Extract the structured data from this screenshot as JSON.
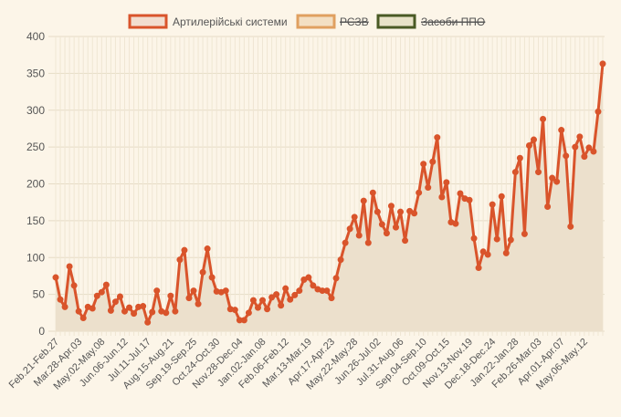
{
  "chart_data": {
    "type": "line",
    "legend": [
      {
        "name": "Артилерійські системи",
        "visible": true,
        "stroke": "#d9542b",
        "fill": "#f2ddcf"
      },
      {
        "name": "РСЗВ",
        "visible": false,
        "stroke": "#e0a060",
        "fill": "#f3dfc3"
      },
      {
        "name": "Засоби ППО",
        "visible": false,
        "stroke": "#4a5a25",
        "fill": "#e8e2c8"
      }
    ],
    "legend_position": "top-center",
    "y_ticks": [
      0,
      50,
      100,
      150,
      200,
      250,
      300,
      350,
      400
    ],
    "ylim": [
      0,
      400
    ],
    "grid": true,
    "x_tick_labels": [
      "Feb.21-Feb.27",
      "Mar.28-Apr.03",
      "May.02-May.08",
      "Jun.06-Jun.12",
      "Jul.11-Jul.17",
      "Aug.15-Aug.21",
      "Sep.19-Sep.25",
      "Oct.24-Oct.30",
      "Nov.28-Dec.04",
      "Jan.02-Jan.08",
      "Feb.06-Feb.12",
      "Mar.13-Mar.19",
      "Apr.17-Apr.23",
      "May.22-May.28",
      "Jun.26-Jul.02",
      "Jul.31-Aug.06",
      "Sep.04-Sep.10",
      "Oct.09-Oct.15",
      "Nov.13-Nov.19",
      "Dec.18-Dec.24",
      "Jan.22-Jan.28",
      "Feb.26-Mar.03",
      "Apr.01-Apr.07",
      "May.06-May.12"
    ],
    "x_tick_every": 5,
    "series": [
      {
        "name": "Артилерійські системи",
        "color": "#d9542b",
        "area_fill": "#ece0cc",
        "values": [
          73,
          43,
          33,
          88,
          62,
          27,
          18,
          33,
          31,
          48,
          53,
          63,
          28,
          40,
          47,
          27,
          32,
          24,
          33,
          34,
          12,
          26,
          55,
          27,
          25,
          48,
          27,
          97,
          110,
          45,
          55,
          37,
          80,
          112,
          73,
          54,
          53,
          55,
          30,
          29,
          15,
          15,
          25,
          42,
          32,
          42,
          30,
          46,
          50,
          35,
          58,
          43,
          49,
          55,
          70,
          73,
          62,
          57,
          55,
          55,
          45,
          72,
          97,
          120,
          139,
          155,
          130,
          177,
          120,
          188,
          162,
          145,
          133,
          170,
          141,
          162,
          123,
          163,
          160,
          188,
          227,
          195,
          230,
          263,
          182,
          202,
          148,
          146,
          187,
          180,
          178,
          126,
          86,
          108,
          104,
          172,
          125,
          183,
          106,
          124,
          216,
          235,
          132,
          252,
          260,
          216,
          288,
          169,
          208,
          203,
          273,
          238,
          142,
          250,
          264,
          237,
          249,
          244,
          298,
          363
        ]
      }
    ]
  }
}
